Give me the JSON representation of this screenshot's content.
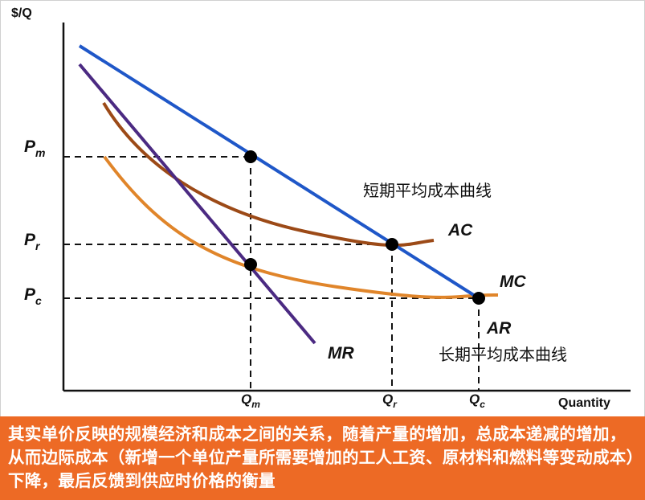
{
  "axes": {
    "y_label": "$/Q",
    "x_label": "Quantity"
  },
  "prices": {
    "pm": {
      "main": "P",
      "sub": "m"
    },
    "pr": {
      "main": "P",
      "sub": "r"
    },
    "pc": {
      "main": "P",
      "sub": "c"
    }
  },
  "quantities": {
    "qm": {
      "main": "Q",
      "sub": "m"
    },
    "qr": {
      "main": "Q",
      "sub": "r"
    },
    "qc": {
      "main": "Q",
      "sub": "c"
    }
  },
  "curves": {
    "ac": "AC",
    "mc": "MC",
    "ar": "AR",
    "mr": "MR"
  },
  "annotations": {
    "short_run_ac": "短期平均成本曲线",
    "long_run_ac": "长期平均成本曲线"
  },
  "colors": {
    "demand_ar": "#1f57c8",
    "mr": "#4b2a82",
    "ac": "#9c4a17",
    "mc": "#e0852a",
    "caption_bg": "#ed6a25"
  },
  "caption": "其实单价反映的规模经济和成本之间的关系，随着产量的增加，总成本递减的增加，从而边际成本（新增一个单位产量所需要增加的工人工资、原材料和燃料等变动成本）下降，最后反馈到供应时价格的衡量"
}
